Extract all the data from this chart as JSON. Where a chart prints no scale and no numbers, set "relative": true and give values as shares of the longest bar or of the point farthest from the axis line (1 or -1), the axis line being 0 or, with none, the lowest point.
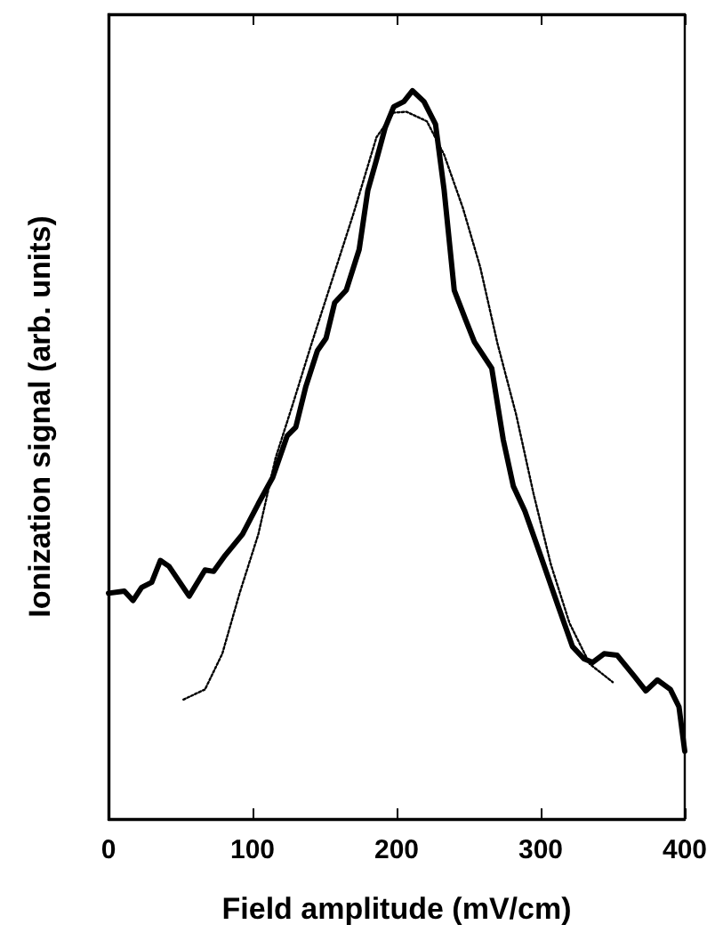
{
  "chart_data": {
    "type": "line",
    "xlabel": "Field amplitude (mV/cm)",
    "ylabel": "Ionization signal (arb. units)",
    "relative": true,
    "xlim": [
      0,
      400
    ],
    "xticks": [
      0,
      100,
      200,
      300,
      400
    ],
    "grid": false,
    "marker": "none",
    "series": [
      {
        "color": "#000000",
        "line_style": "solid",
        "x": [
          0,
          11,
          17,
          23,
          30,
          36,
          42,
          56,
          67,
          73,
          81,
          93,
          104,
          114,
          124,
          130,
          137,
          145,
          151,
          157,
          165,
          174,
          180,
          186,
          192,
          198,
          205,
          211,
          219,
          227,
          233,
          240,
          248,
          254,
          266,
          274,
          281,
          289,
          299,
          312,
          322,
          330,
          336,
          344,
          353,
          365,
          373,
          381,
          390,
          396,
          400
        ],
        "values": [
          0.31,
          0.313,
          0.3,
          0.318,
          0.325,
          0.355,
          0.347,
          0.306,
          0.342,
          0.34,
          0.362,
          0.391,
          0.433,
          0.469,
          0.526,
          0.538,
          0.594,
          0.643,
          0.66,
          0.709,
          0.726,
          0.782,
          0.863,
          0.905,
          0.949,
          0.978,
          0.985,
          1.0,
          0.985,
          0.954,
          0.863,
          0.726,
          0.685,
          0.655,
          0.619,
          0.521,
          0.457,
          0.423,
          0.367,
          0.293,
          0.237,
          0.22,
          0.215,
          0.227,
          0.225,
          0.196,
          0.176,
          0.191,
          0.178,
          0.154,
          0.093
        ]
      },
      {
        "color": "#000000",
        "line_style": "dotted",
        "x": [
          52,
          67,
          79,
          91,
          104,
          116,
          128,
          141,
          157,
          170,
          186,
          198,
          207,
          221,
          233,
          246,
          258,
          270,
          283,
          295,
          307,
          320,
          334,
          350
        ],
        "values": [
          0.164,
          0.178,
          0.227,
          0.31,
          0.391,
          0.496,
          0.57,
          0.653,
          0.751,
          0.831,
          0.936,
          0.97,
          0.971,
          0.958,
          0.912,
          0.839,
          0.758,
          0.653,
          0.555,
          0.447,
          0.35,
          0.269,
          0.213,
          0.188
        ]
      }
    ]
  }
}
